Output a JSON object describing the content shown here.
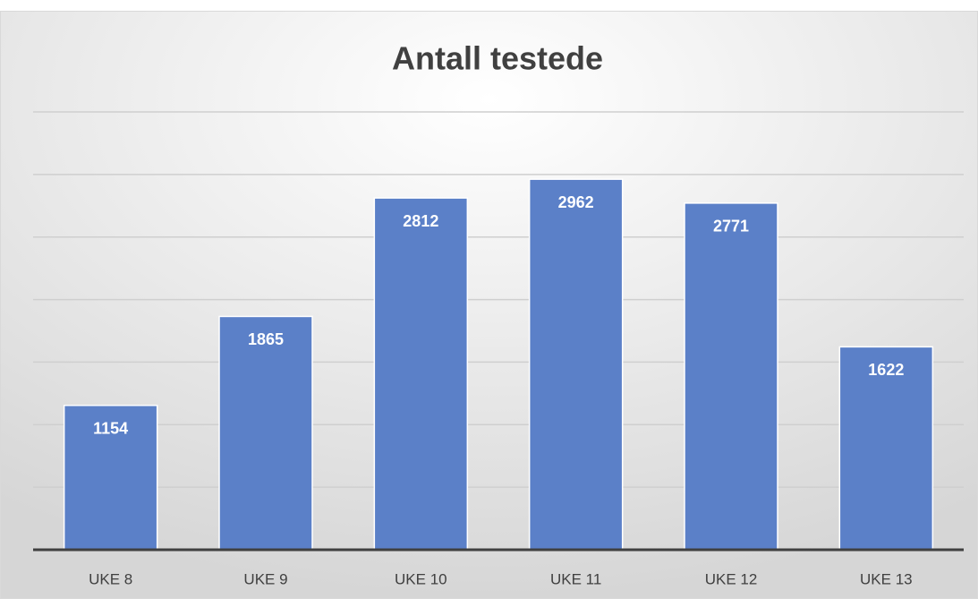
{
  "chart_data": {
    "type": "bar",
    "title": "Antall testede",
    "categories": [
      "UKE 8",
      "UKE 9",
      "UKE 10",
      "UKE 11",
      "UKE 12",
      "UKE 13"
    ],
    "values": [
      1154,
      1865,
      2812,
      2962,
      2771,
      1622
    ],
    "color": "#5b80c8",
    "ylim": [
      0,
      3500
    ],
    "yticks": [
      0,
      500,
      1000,
      1500,
      2000,
      2500,
      3000,
      3500
    ],
    "grid": true
  }
}
